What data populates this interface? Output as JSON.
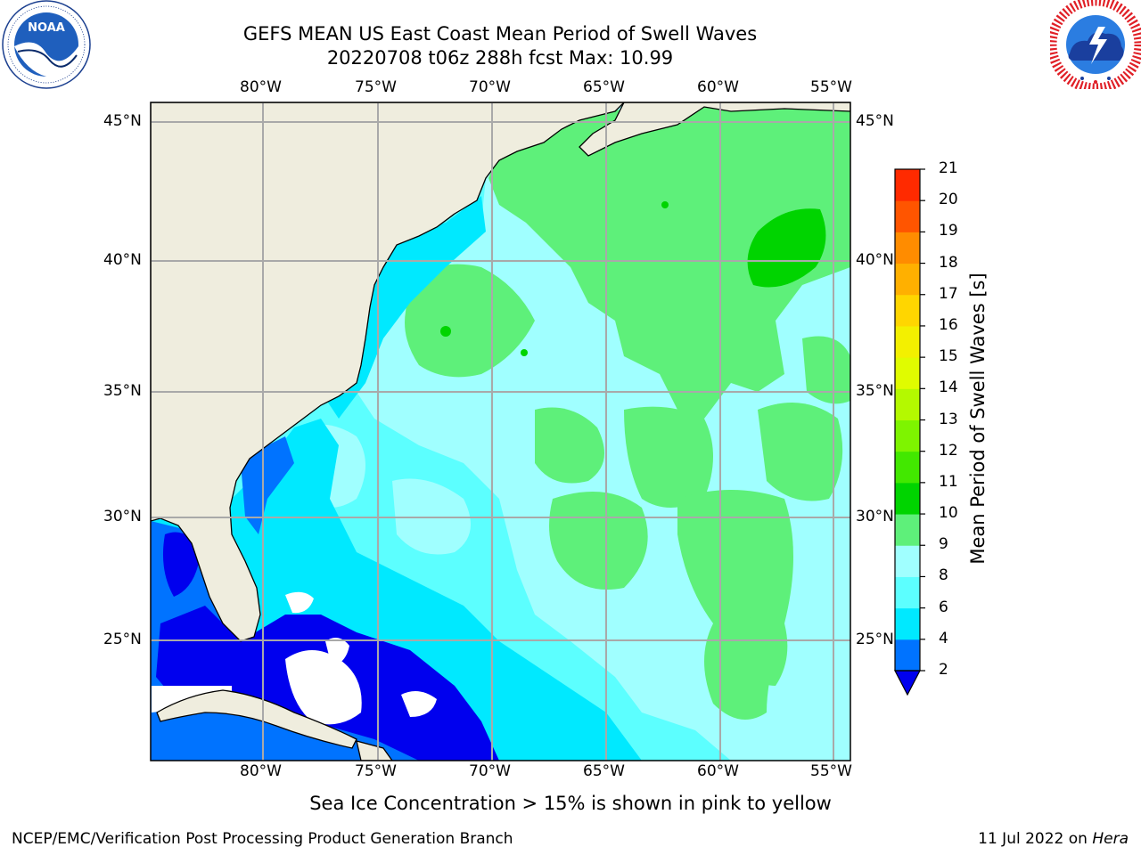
{
  "header": {
    "title_line1": "GEFS MEAN US East Coast Mean Period of Swell Waves",
    "title_line2": "20220708 t06z 288h fcst   Max: 10.99"
  },
  "logos": {
    "left": {
      "icon": "noaa-logo",
      "text": "NOAA",
      "ring_text": "NATIONAL OCEANIC AND ATMOSPHERIC ADMINISTRATION · U.S. DEPARTMENT OF COMMERCE"
    },
    "right": {
      "icon": "nws-logo",
      "ring_text": "NATIONAL WEATHER SERVICE"
    }
  },
  "map": {
    "lon_labels": [
      "80°W",
      "75°W",
      "70°W",
      "65°W",
      "60°W",
      "55°W"
    ],
    "lat_labels": [
      "45°N",
      "40°N",
      "35°N",
      "30°N",
      "25°N"
    ],
    "land_color": "#efedde",
    "ocean_base_color": "#5cffff"
  },
  "colorbar": {
    "title": "Mean Period of Swell Waves [s]",
    "ticks": [
      "2",
      "4",
      "6",
      "8",
      "9",
      "10",
      "11",
      "12",
      "13",
      "14",
      "15",
      "16",
      "17",
      "18",
      "19",
      "20",
      "21"
    ],
    "colors": [
      "#0000ee",
      "#0073ff",
      "#00e9ff",
      "#5cffff",
      "#a0ffff",
      "#5ef07a",
      "#00d400",
      "#42e800",
      "#7ef400",
      "#b4f900",
      "#e0fc00",
      "#f3f000",
      "#ffd600",
      "#ffb000",
      "#ff8c00",
      "#ff5500",
      "#ff2a00",
      "#ff0000"
    ],
    "under_color": "#0000ee"
  },
  "footer": {
    "note": "Sea Ice Concentration > 15% is shown in pink to yellow",
    "credit": "NCEP/EMC/Verification Post Processing Product Generation Branch",
    "date_prefix": "11 Jul 2022 on ",
    "date_host": "Hera"
  }
}
